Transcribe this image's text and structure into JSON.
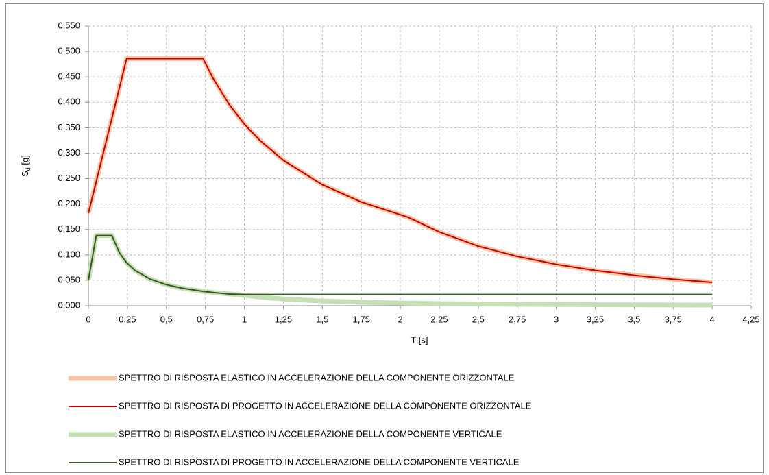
{
  "chart_data": {
    "type": "line",
    "xlabel": "T [s]",
    "ylabel": [
      "S",
      "d",
      " [g]"
    ],
    "x": [
      0,
      0.05,
      0.1,
      0.15,
      0.2,
      0.245,
      0.3,
      0.4,
      0.5,
      0.6,
      0.735,
      0.8,
      0.9,
      1.0,
      1.1,
      1.25,
      1.5,
      1.75,
      2.05,
      2.25,
      2.5,
      2.75,
      3,
      3.25,
      3.5,
      3.75,
      4
    ],
    "series": [
      {
        "name": "SPETTRO DI RISPOSTA ELASTICO IN ACCELERAZIONE DELLA COMPONENTE ORIZZONTALE",
        "color": "#f5c6a6",
        "width": 7,
        "values": [
          0.182,
          0.244,
          0.306,
          0.368,
          0.43,
          0.486,
          0.486,
          0.486,
          0.486,
          0.486,
          0.486,
          0.447,
          0.397,
          0.357,
          0.325,
          0.286,
          0.238,
          0.204,
          0.174,
          0.145,
          0.117,
          0.097,
          0.0813,
          0.0693,
          0.0598,
          0.0521,
          0.0458
        ]
      },
      {
        "name": "SPETTRO DI RISPOSTA DI PROGETTO IN ACCELERAZIONE DELLA COMPONENTE ORIZZONTALE",
        "color": "#c00000",
        "width": 2,
        "values": [
          0.182,
          0.244,
          0.306,
          0.368,
          0.43,
          0.486,
          0.486,
          0.486,
          0.486,
          0.486,
          0.486,
          0.447,
          0.397,
          0.357,
          0.325,
          0.286,
          0.238,
          0.204,
          0.174,
          0.145,
          0.117,
          0.097,
          0.0813,
          0.0693,
          0.0598,
          0.0521,
          0.0458
        ]
      },
      {
        "name": "SPETTRO DI RISPOSTA ELASTICO IN ACCELERAZIONE DELLA COMPONENTE VERTICALE",
        "color": "#c5e0b4",
        "width": 7,
        "values": [
          0.05,
          0.138,
          0.138,
          0.138,
          0.1035,
          0.0845,
          0.069,
          0.0518,
          0.0414,
          0.0345,
          0.0282,
          0.0259,
          0.023,
          0.0207,
          0.0171,
          0.0132,
          0.0092,
          0.0068,
          0.0049,
          0.0041,
          0.0033,
          0.0027,
          0.0023,
          0.002,
          0.0017,
          0.0015,
          0.0013
        ]
      },
      {
        "name": "SPETTRO DI RISPOSTA DI PROGETTO IN ACCELERAZIONE DELLA COMPONENTE VERTICALE",
        "color": "#375623",
        "width": 2,
        "values": [
          0.05,
          0.138,
          0.138,
          0.138,
          0.1035,
          0.0845,
          0.069,
          0.0518,
          0.0414,
          0.0345,
          0.0282,
          0.0259,
          0.023,
          0.022,
          0.022,
          0.022,
          0.022,
          0.022,
          0.022,
          0.022,
          0.022,
          0.022,
          0.022,
          0.022,
          0.022,
          0.022,
          0.022
        ]
      }
    ],
    "xlim": [
      0,
      4.25
    ],
    "ylim": [
      0,
      0.55
    ],
    "xticks": [
      0,
      {
        "value": 0.25,
        "label": "0,25"
      },
      {
        "value": 0.5,
        "label": "0,5"
      },
      {
        "value": 0.75,
        "label": "0,75"
      },
      1,
      {
        "value": 1.25,
        "label": "1,25"
      },
      {
        "value": 1.5,
        "label": "1,5"
      },
      {
        "value": 1.75,
        "label": "1,75"
      },
      2,
      {
        "value": 2.25,
        "label": "2,25"
      },
      {
        "value": 2.5,
        "label": "2,5"
      },
      {
        "value": 2.75,
        "label": "2,75"
      },
      3,
      {
        "value": 3.25,
        "label": "3,25"
      },
      {
        "value": 3.5,
        "label": "3,5"
      },
      {
        "value": 3.75,
        "label": "3,75"
      },
      4,
      {
        "value": 4.25,
        "label": "4,25"
      }
    ],
    "yticks": [
      {
        "value": 0,
        "label": "0,000"
      },
      {
        "value": 0.05,
        "label": "0,050"
      },
      {
        "value": 0.1,
        "label": "0,100"
      },
      {
        "value": 0.15,
        "label": "0,150"
      },
      {
        "value": 0.2,
        "label": "0,200"
      },
      {
        "value": 0.25,
        "label": "0,250"
      },
      {
        "value": 0.3,
        "label": "0,300"
      },
      {
        "value": 0.35,
        "label": "0,350"
      },
      {
        "value": 0.4,
        "label": "0,400"
      },
      {
        "value": 0.45,
        "label": "0,450"
      },
      {
        "value": 0.5,
        "label": "0,500"
      },
      {
        "value": 0.55,
        "label": "0,550"
      }
    ],
    "grid": true,
    "legend": "bottom"
  }
}
